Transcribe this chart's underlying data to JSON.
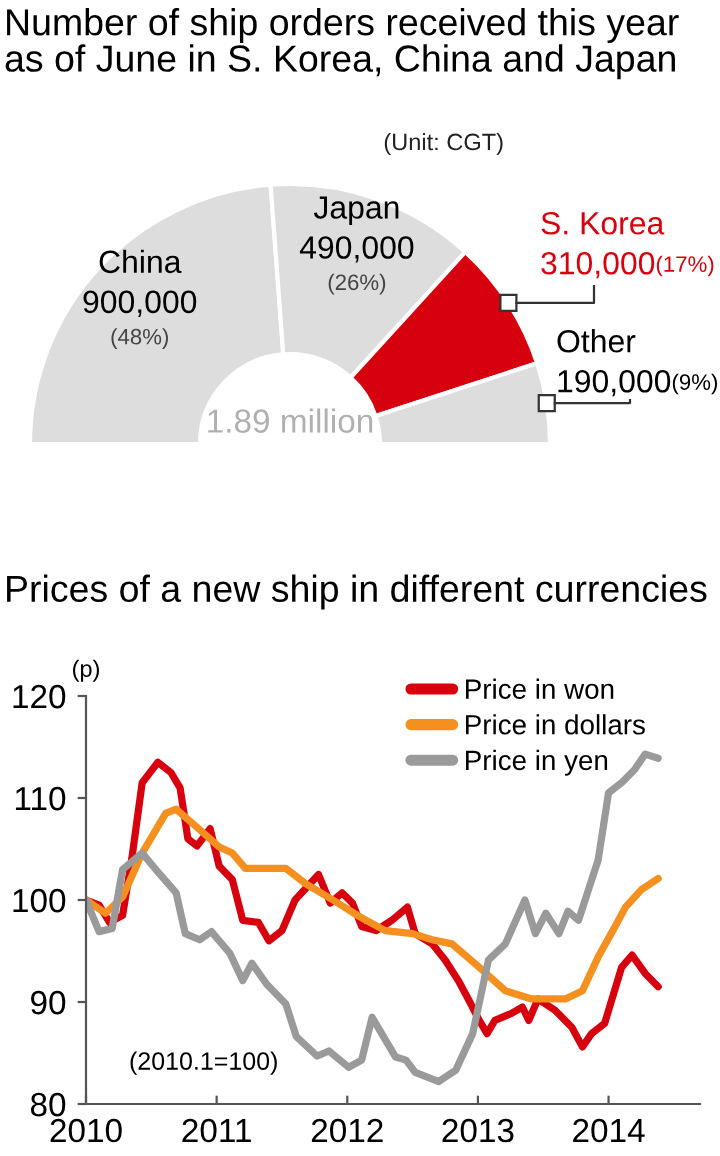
{
  "chart_data": [
    {
      "type": "donut",
      "title": "Number of ship orders received this year\nas of June in S. Korea, China and Japan",
      "subtitle": "(Unit: CGT)",
      "categories": [
        "China",
        "Japan",
        "S. Korea",
        "Other"
      ],
      "values": [
        900000,
        490000,
        310000,
        190000
      ],
      "colors": [
        "#dddddd",
        "#dddddd",
        "#d7000f",
        "#dddddd"
      ],
      "value_labels": [
        "900,000 (48%)",
        "490,000 (26%)",
        "310,000 (17%)",
        "190,000 (9%)"
      ],
      "annotations": [
        "1.89 million"
      ]
    },
    {
      "type": "line",
      "title": "Prices of a new ship in different currencies",
      "ylabel": "(p)",
      "xlim": [
        2010,
        2014.7
      ],
      "xticks": [
        2010,
        2011,
        2012,
        2013,
        2014
      ],
      "ylim": [
        80,
        120
      ],
      "yticks": [
        80,
        90,
        100,
        110,
        120
      ],
      "grid": false,
      "legend": "top right",
      "marker": "none",
      "line_style": "solid",
      "annotations": [
        "(2010.1=100)"
      ],
      "series": [
        {
          "name": "Price in won",
          "color": "#d7000f",
          "x": [
            2010.0,
            2010.1,
            2010.18,
            2010.28,
            2010.35,
            2010.43,
            2010.55,
            2010.65,
            2010.72,
            2010.78,
            2010.85,
            2010.95,
            2011.02,
            2011.12,
            2011.2,
            2011.32,
            2011.4,
            2011.5,
            2011.6,
            2011.78,
            2011.87,
            2011.96,
            2012.04,
            2012.11,
            2012.22,
            2012.34,
            2012.46,
            2012.52,
            2012.65,
            2012.75,
            2012.85,
            2012.93,
            2013.01,
            2013.07,
            2013.13,
            2013.26,
            2013.34,
            2013.39,
            2013.46,
            2013.59,
            2013.72,
            2013.8,
            2013.87,
            2013.97,
            2014.1,
            2014.18,
            2014.28,
            2014.38
          ],
          "values": [
            100,
            99.5,
            97.8,
            98.5,
            104,
            111.5,
            113.5,
            112.5,
            111,
            106,
            105.3,
            107,
            103.3,
            102,
            98,
            97.8,
            96,
            97,
            100,
            102.5,
            99.7,
            100.7,
            99.7,
            97.4,
            97,
            98,
            99.3,
            96.7,
            95.7,
            94.1,
            92.1,
            90.2,
            88.2,
            86.9,
            88.2,
            88.9,
            89.5,
            88.2,
            90.3,
            89.2,
            87.5,
            85.6,
            86.9,
            87.9,
            93.4,
            94.6,
            92.8,
            91.5
          ]
        },
        {
          "name": "Price in dollars",
          "color": "#f39020",
          "x": [
            2010.0,
            2010.15,
            2010.28,
            2010.43,
            2010.61,
            2010.69,
            2010.87,
            2011.02,
            2011.12,
            2011.22,
            2011.53,
            2011.68,
            2011.89,
            2012.09,
            2012.29,
            2012.5,
            2012.65,
            2012.8,
            2013.01,
            2013.21,
            2013.41,
            2013.67,
            2013.8,
            2013.92,
            2014.05,
            2014.13,
            2014.25,
            2014.38
          ],
          "values": [
            100,
            98.7,
            100.3,
            104.6,
            108.5,
            108.9,
            106.9,
            105.2,
            104.6,
            103.1,
            103.1,
            101.6,
            100,
            98.4,
            97,
            96.7,
            96.1,
            95.7,
            93.4,
            91.1,
            90.3,
            90.3,
            91.1,
            94.4,
            97.4,
            99.3,
            101,
            102.1
          ]
        },
        {
          "name": "Price in yen",
          "color": "#9a9a9a",
          "x": [
            2010.0,
            2010.1,
            2010.2,
            2010.28,
            2010.43,
            2010.56,
            2010.69,
            2010.76,
            2010.87,
            2010.96,
            2011.1,
            2011.2,
            2011.27,
            2011.38,
            2011.53,
            2011.61,
            2011.77,
            2011.86,
            2012.01,
            2012.11,
            2012.19,
            2012.37,
            2012.45,
            2012.52,
            2012.7,
            2012.83,
            2012.96,
            2013.08,
            2013.21,
            2013.36,
            2013.44,
            2013.52,
            2013.62,
            2013.69,
            2013.77,
            2013.92,
            2014.0,
            2014.1,
            2014.2,
            2014.28,
            2014.38
          ],
          "values": [
            100,
            96.9,
            97.2,
            103,
            104.6,
            102.6,
            100.7,
            96.7,
            96.1,
            96.9,
            94.8,
            92.1,
            93.8,
            91.8,
            89.8,
            86.6,
            84.7,
            85.2,
            83.6,
            84.3,
            88.5,
            84.6,
            84.3,
            83.1,
            82.2,
            83.3,
            86.9,
            94.1,
            95.7,
            100,
            96.7,
            98.7,
            96.7,
            98.9,
            98,
            103.9,
            110.5,
            111.5,
            112.8,
            114.3,
            113.9
          ]
        }
      ]
    }
  ]
}
